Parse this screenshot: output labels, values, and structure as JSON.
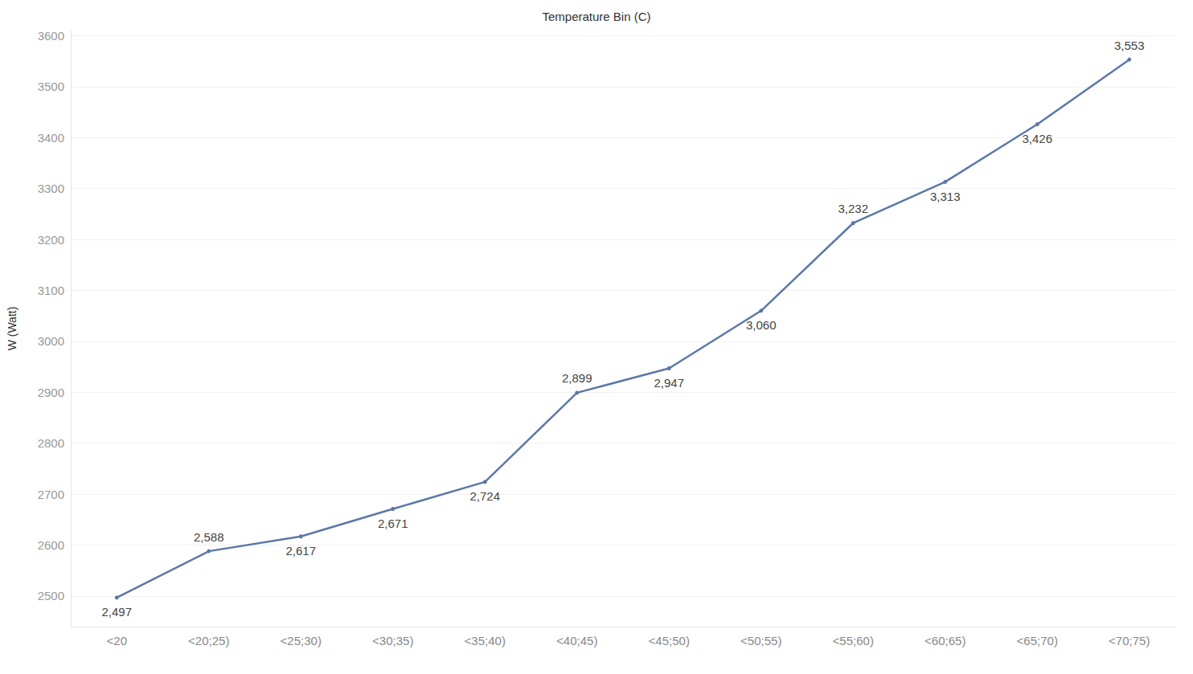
{
  "chart_data": {
    "type": "line",
    "title": "Temperature Bin (C)",
    "y_label": "W (Watt)",
    "categories": [
      "<20",
      "<20;25)",
      "<25;30)",
      "<30;35)",
      "<35;40)",
      "<40;45)",
      "<45;50)",
      "<50;55)",
      "<55;60)",
      "<60;65)",
      "<65;70)",
      "<70;75)"
    ],
    "values": [
      2497,
      2588,
      2617,
      2671,
      2724,
      2899,
      2947,
      3060,
      3232,
      3313,
      3426,
      3553
    ],
    "value_labels": [
      "2,497",
      "2,588",
      "2,617",
      "2,671",
      "2,724",
      "2,899",
      "2,947",
      "3,060",
      "3,232",
      "3,313",
      "3,426",
      "3,553"
    ],
    "color": "#5b77a8",
    "ylim": [
      2440,
      3610
    ],
    "yticks": [
      2500,
      2600,
      2700,
      2800,
      2900,
      3000,
      3100,
      3200,
      3300,
      3400,
      3500,
      3600
    ],
    "grid": true,
    "data_labels": true,
    "marker": "circle"
  }
}
